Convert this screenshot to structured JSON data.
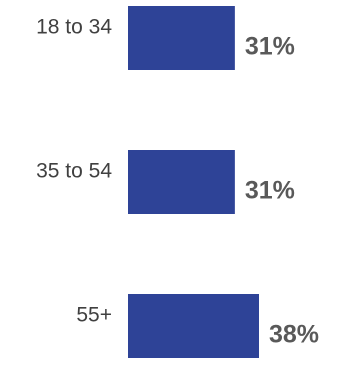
{
  "chart_data": {
    "type": "bar",
    "orientation": "horizontal",
    "categories": [
      "18 to 34",
      "35 to 54",
      "55+"
    ],
    "values": [
      31,
      31,
      38
    ],
    "value_labels": [
      "31%",
      "31%",
      "38%"
    ],
    "unit": "%",
    "bar_color": "#2e4397",
    "title": "",
    "xlabel": "",
    "ylabel": "",
    "xlim": [
      0,
      38
    ],
    "grid": false,
    "legend": "none"
  }
}
